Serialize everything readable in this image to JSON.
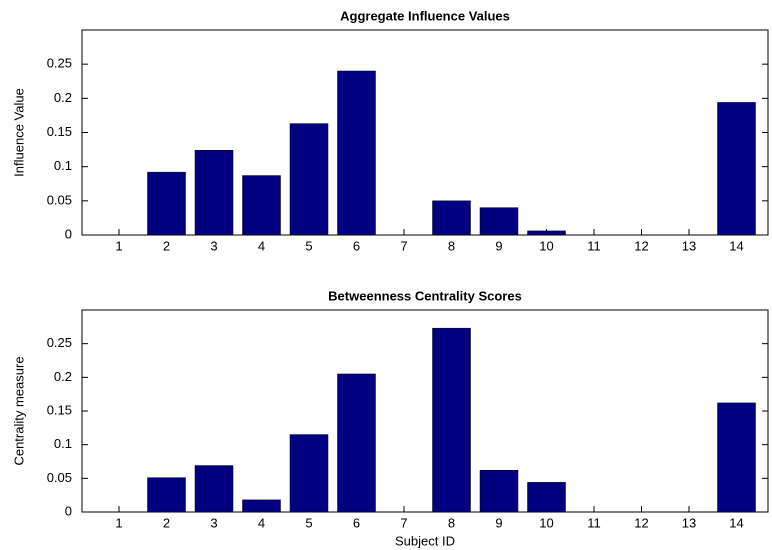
{
  "chart_data": [
    {
      "type": "bar",
      "title": "Aggregate Influence Values",
      "y_label": "Influence Value",
      "categories": [
        1,
        2,
        3,
        4,
        5,
        6,
        7,
        8,
        9,
        10,
        11,
        12,
        13,
        14
      ],
      "values": [
        0,
        0.092,
        0.124,
        0.087,
        0.163,
        0.24,
        0,
        0.05,
        0.04,
        0.006,
        0,
        0,
        0,
        0.194
      ],
      "color": "#000080",
      "ylim": [
        0,
        0.3
      ],
      "yticks": [
        0,
        0.05,
        0.1,
        0.15,
        0.2,
        0.25
      ]
    },
    {
      "type": "bar",
      "title": "Betweenness Centrality Scores",
      "y_label": "Centrality measure",
      "x_label": "Subject ID",
      "categories": [
        1,
        2,
        3,
        4,
        5,
        6,
        7,
        8,
        9,
        10,
        11,
        12,
        13,
        14
      ],
      "values": [
        0,
        0.051,
        0.069,
        0.018,
        0.115,
        0.205,
        0,
        0.273,
        0.062,
        0.044,
        0,
        0,
        0,
        0.162
      ],
      "color": "#000080",
      "ylim": [
        0,
        0.3
      ],
      "yticks": [
        0,
        0.05,
        0.1,
        0.15,
        0.2,
        0.25
      ]
    }
  ]
}
